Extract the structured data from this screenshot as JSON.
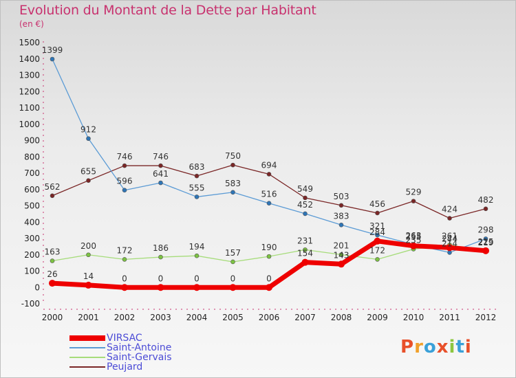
{
  "title": "Evolution du Montant de la Dette par Habitant",
  "unit": "(en €)",
  "logo_text": "Proxiti",
  "colors": {
    "title": "#c8316e",
    "legend_text": "#4b4bd6",
    "logo": [
      "#e8502a",
      "#f0a02a",
      "#3aa0d8",
      "#e8502a",
      "#8cc63f",
      "#3aa0d8",
      "#e8502a"
    ]
  },
  "chart_data": {
    "type": "line",
    "x": [
      "2000",
      "2001",
      "2002",
      "2003",
      "2004",
      "2005",
      "2006",
      "2007",
      "2008",
      "2009",
      "2010",
      "2011",
      "2012"
    ],
    "ylim": [
      -100,
      1500
    ],
    "yticks": [
      -100,
      0,
      100,
      200,
      300,
      400,
      500,
      600,
      700,
      800,
      900,
      1000,
      1100,
      1200,
      1300,
      1400,
      1500
    ],
    "grid": false,
    "legend_position": "bottom-left",
    "series": [
      {
        "name": "Peujard",
        "color": "#7a2626",
        "marker": "#7a2626",
        "width": 1.3,
        "values": [
          562,
          655,
          746,
          746,
          683,
          750,
          694,
          549,
          503,
          456,
          529,
          424,
          482
        ],
        "labels": [
          "562",
          "655",
          "746",
          "746",
          "683",
          "750",
          "694",
          "549",
          "503",
          "456",
          "529",
          "424",
          "482"
        ]
      },
      {
        "name": "Saint-Antoine",
        "color": "#5b9bd5",
        "marker": "#2e75b6",
        "width": 1.3,
        "values": [
          1399,
          912,
          596,
          641,
          555,
          583,
          516,
          452,
          383,
          321,
          263,
          214,
          298
        ],
        "labels": [
          "1399",
          "912",
          "596",
          "641",
          "555",
          "583",
          "516",
          "452",
          "383",
          "321",
          "263",
          "214",
          "298"
        ]
      },
      {
        "name": "Saint-Gervais",
        "color": "#a6dc7a",
        "marker": "#7cc242",
        "width": 1.3,
        "values": [
          163,
          200,
          172,
          186,
          194,
          157,
          190,
          231,
          201,
          172,
          235,
          261,
          219
        ],
        "labels": [
          "163",
          "200",
          "172",
          "186",
          "194",
          "157",
          "190",
          "231",
          "201",
          "172",
          "235",
          "261",
          "219"
        ]
      },
      {
        "name": "VIRSAC",
        "color": "#ee0000",
        "marker": "#ee0000",
        "width": 7,
        "values": [
          26,
          14,
          0,
          0,
          0,
          0,
          0,
          154,
          143,
          284,
          255,
          244,
          225
        ],
        "labels": [
          "26",
          "14",
          "0",
          "0",
          "0",
          "0",
          "0",
          "154",
          "143",
          "284",
          "255",
          "244",
          "225"
        ]
      }
    ],
    "legend_order": [
      "VIRSAC",
      "Saint-Antoine",
      "Saint-Gervais",
      "Peujard"
    ]
  }
}
